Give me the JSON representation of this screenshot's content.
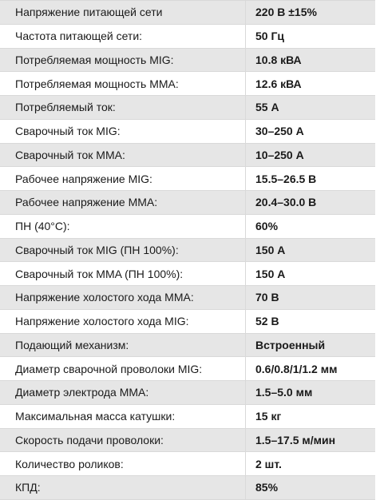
{
  "specs": [
    {
      "param": "Напряжение питающей сети",
      "value": "220 В ±15%"
    },
    {
      "param": "Частота питающей сети:",
      "value": "50 Гц"
    },
    {
      "param": "Потребляемая мощность MIG:",
      "value": "10.8 кВА"
    },
    {
      "param": "Потребляемая мощность MMA:",
      "value": "12.6 кВА"
    },
    {
      "param": "Потребляемый ток:",
      "value": "55 А"
    },
    {
      "param": "Сварочный ток MIG:",
      "value": "30–250 А"
    },
    {
      "param": "Сварочный ток MMA:",
      "value": "10–250 А"
    },
    {
      "param": "Рабочее напряжение MIG:",
      "value": "15.5–26.5 В"
    },
    {
      "param": "Рабочее напряжение MMA:",
      "value": "20.4–30.0 В"
    },
    {
      "param": "ПН (40°С):",
      "value": "60%"
    },
    {
      "param": "Сварочный ток MIG (ПН 100%):",
      "value": "150 А"
    },
    {
      "param": "Сварочный ток MMA (ПН 100%):",
      "value": "150 А"
    },
    {
      "param": "Напряжение холостого хода MMA:",
      "value": "70 В"
    },
    {
      "param": "Напряжение холостого хода MIG:",
      "value": "52 В"
    },
    {
      "param": "Подающий механизм:",
      "value": "Встроенный"
    },
    {
      "param": "Диаметр сварочной проволоки MIG:",
      "value": "0.6/0.8/1/1.2 мм"
    },
    {
      "param": "Диаметр электрода MMA:",
      "value": "1.5–5.0 мм"
    },
    {
      "param": "Максимальная масса катушки:",
      "value": "15 кг"
    },
    {
      "param": "Скорость подачи проволоки:",
      "value": "1.5–17.5 м/мин"
    },
    {
      "param": "Количество роликов:",
      "value": "2 шт."
    },
    {
      "param": "КПД:",
      "value": "85%"
    }
  ]
}
